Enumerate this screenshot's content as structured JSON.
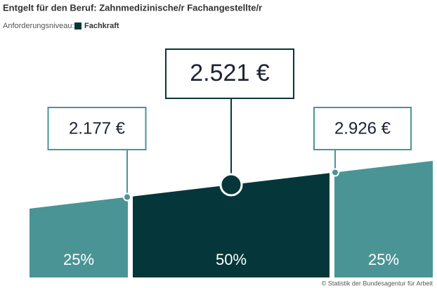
{
  "chart_data": {
    "type": "salary-range",
    "title": "Entgelt für den Beruf: Zahnmedizinische/r Fachangestellte/r",
    "level_label": "Anforderungsniveau:",
    "level": "Fachkraft",
    "level_color": "#05363a",
    "values": [
      2177,
      2521,
      2926
    ],
    "value_labels": [
      "2.177 €",
      "2.521 €",
      "2.926 €"
    ],
    "shares": [
      25,
      50,
      25
    ],
    "share_labels": [
      "25%",
      "50%",
      "25%"
    ],
    "colors": [
      "#4b9496",
      "#05363a",
      "#4b9496"
    ],
    "source": "© Statistik der Bundesagentur für Arbeit"
  }
}
